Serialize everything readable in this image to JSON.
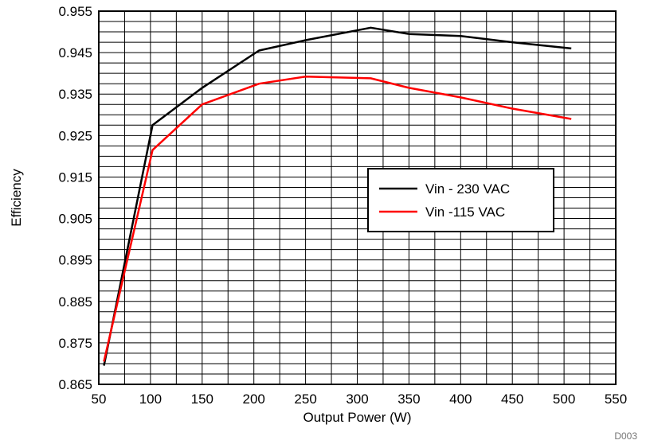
{
  "chart_data": {
    "type": "line",
    "xlabel": "Output Power (W)",
    "ylabel": "Efficiency",
    "xlim": [
      50,
      550
    ],
    "ylim": [
      0.865,
      0.955
    ],
    "x_ticks": [
      "50",
      "100",
      "150",
      "200",
      "250",
      "300",
      "350",
      "400",
      "450",
      "500",
      "550"
    ],
    "y_ticks": [
      "0.955",
      "0.945",
      "0.935",
      "0.925",
      "0.915",
      "0.905",
      "0.895",
      "0.885",
      "0.875",
      "0.865"
    ],
    "x_minor_step": 25,
    "y_minor_step": 0.0025,
    "grid": true,
    "legend_position": "center-right",
    "series": [
      {
        "name": "Vin - 230 VAC",
        "color": "#000000",
        "x": [
          55,
          102,
          150,
          205,
          250,
          313,
          350,
          400,
          450,
          507
        ],
        "y": [
          0.8695,
          0.9275,
          0.9365,
          0.9455,
          0.948,
          0.951,
          0.9495,
          0.949,
          0.9475,
          0.946
        ]
      },
      {
        "name": "Vin -115 VAC",
        "color": "#ff0000",
        "x": [
          55,
          102,
          150,
          205,
          250,
          313,
          350,
          400,
          450,
          507
        ],
        "y": [
          0.8705,
          0.9215,
          0.9325,
          0.9375,
          0.9392,
          0.9388,
          0.9365,
          0.9342,
          0.9315,
          0.929
        ]
      }
    ],
    "corner_label": "D003"
  }
}
